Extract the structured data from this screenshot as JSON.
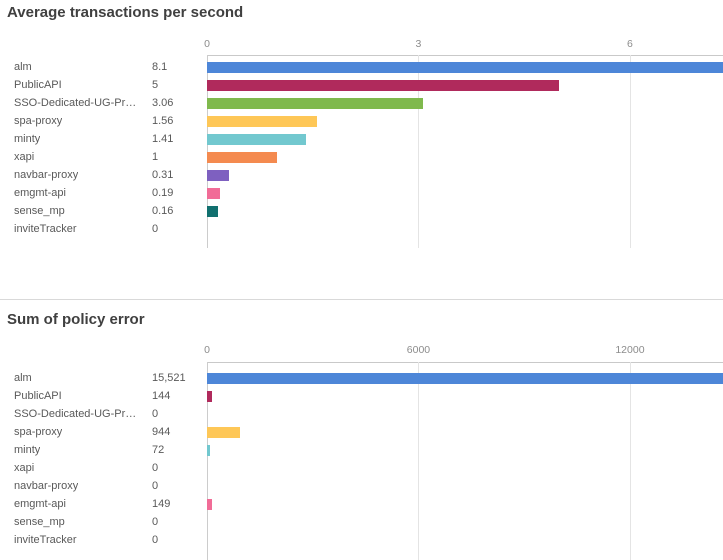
{
  "style": {
    "background": "#ffffff",
    "title_color": "#404040",
    "label_color": "#595959",
    "tick_color": "#8c8c8c",
    "gridline_color": "#e4e4e4",
    "gridline_zero_color": "#cccccc",
    "axis_line_color": "#c9c9c9",
    "divider_color": "#d9d9d9"
  },
  "chart_data": [
    {
      "type": "bar",
      "orientation": "horizontal",
      "title": "Average transactions per second",
      "grid": true,
      "legend": false,
      "categories": [
        "alm",
        "PublicAPI",
        "SSO-Dedicated-UG-Pr…",
        "spa-proxy",
        "minty",
        "xapi",
        "navbar-proxy",
        "emgmt-api",
        "sense_mp",
        "inviteTracker"
      ],
      "values": [
        8.1,
        5,
        3.06,
        1.56,
        1.41,
        1,
        0.31,
        0.19,
        0.16,
        0
      ],
      "value_labels": [
        "8.1",
        "5",
        "3.06",
        "1.56",
        "1.41",
        "1",
        "0.31",
        "0.19",
        "0.16",
        "0"
      ],
      "bar_colors": [
        "#4d86d8",
        "#b02a5c",
        "#7fb94d",
        "#fec757",
        "#72c8cf",
        "#f48a4f",
        "#7e60c0",
        "#f16c97",
        "#11706f",
        "#9b9b9b"
      ],
      "x_ticks": [
        0,
        3,
        6
      ],
      "x_tick_labels": [
        "0",
        "3",
        "6"
      ],
      "x_axis_max": 7.32
    },
    {
      "type": "bar",
      "orientation": "horizontal",
      "title": "Sum of policy error",
      "grid": true,
      "legend": false,
      "categories": [
        "alm",
        "PublicAPI",
        "SSO-Dedicated-UG-Pr…",
        "spa-proxy",
        "minty",
        "xapi",
        "navbar-proxy",
        "emgmt-api",
        "sense_mp",
        "inviteTracker"
      ],
      "values": [
        15521,
        144,
        0,
        944,
        72,
        0,
        0,
        149,
        0,
        0
      ],
      "value_labels": [
        "15,521",
        "144",
        "0",
        "944",
        "72",
        "0",
        "0",
        "149",
        "0",
        "0"
      ],
      "bar_colors": [
        "#4d86d8",
        "#b02a5c",
        "#7fb94d",
        "#fec757",
        "#72c8cf",
        "#f48a4f",
        "#7e60c0",
        "#f16c97",
        "#11706f",
        "#9b9b9b"
      ],
      "x_ticks": [
        0,
        6000,
        12000
      ],
      "x_tick_labels": [
        "0",
        "6000",
        "12000"
      ],
      "x_axis_max": 14640
    }
  ]
}
